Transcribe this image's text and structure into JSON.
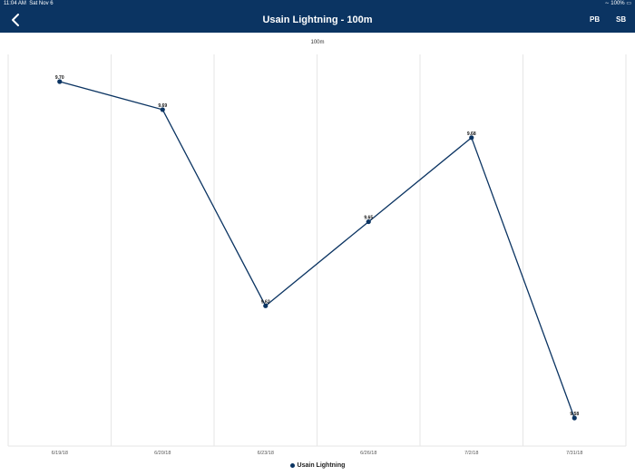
{
  "status_bar": {
    "time": "11:04 AM",
    "date": "Sat Nov 6",
    "battery": "100%"
  },
  "nav": {
    "title": "Usain Lightning - 100m",
    "back_icon": "chevron-left-icon",
    "pb_label": "PB",
    "sb_label": "SB"
  },
  "colors": {
    "nav_bg": "#0b3462",
    "series": "#0b3462",
    "grid": "#e6e6e6"
  },
  "chart_data": {
    "type": "line",
    "title": "100m",
    "categories": [
      "6/19/18",
      "6/20/18",
      "6/23/18",
      "6/26/18",
      "7/2/18",
      "7/31/18"
    ],
    "series": [
      {
        "name": "Usain Lightning",
        "values": [
          9.7,
          9.69,
          9.62,
          9.65,
          9.68,
          9.58
        ],
        "labels": [
          "9.70",
          "9.69",
          "9.62",
          "9.65",
          "9.68",
          "9.58"
        ]
      }
    ],
    "ylim": [
      9.58,
      9.7
    ],
    "grid": true,
    "legend": "bottom"
  }
}
